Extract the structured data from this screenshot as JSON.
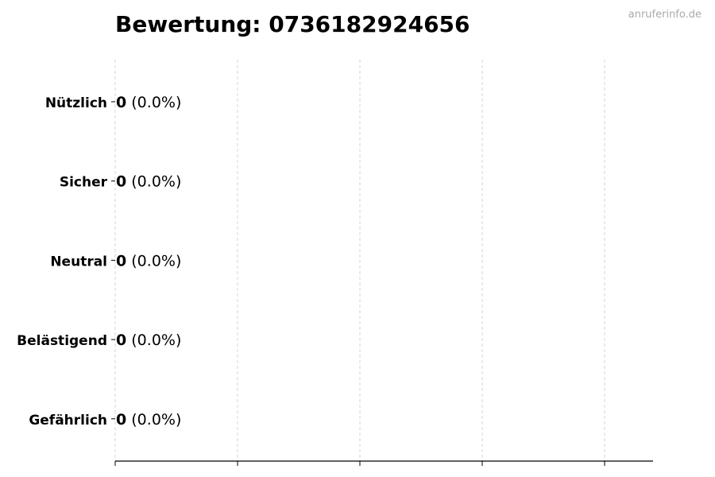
{
  "chart_data": {
    "type": "bar",
    "orientation": "horizontal",
    "title": "Bewertung: 0736182924656",
    "watermark": "anruferinfo.de",
    "categories": [
      "Nützlich",
      "Sicher",
      "Neutral",
      "Belästigend",
      "Gefährlich"
    ],
    "values": [
      0,
      0,
      0,
      0,
      0
    ],
    "percent_labels": [
      "(0.0%)",
      "(0.0%)",
      "(0.0%)",
      "(0.0%)",
      "(0.0%)"
    ],
    "xlim": [
      0,
      4.4
    ],
    "xticks": [
      0,
      1,
      2,
      3,
      4
    ],
    "xtick_labels_shown": false,
    "grid": "x dashed",
    "colors": {
      "grid": "#cccccc",
      "text": "#000000",
      "watermark": "#aaaaaa"
    }
  }
}
